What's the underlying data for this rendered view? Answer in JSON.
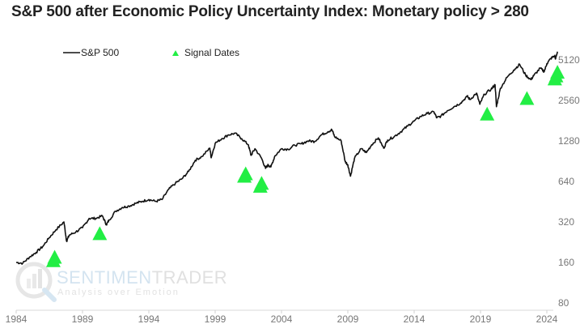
{
  "chart_data": {
    "type": "line",
    "title": "S&P 500 after Economic Policy Uncertainty Index: Monetary policy > 280",
    "xlabel": "",
    "ylabel": "",
    "y_scale": "log2",
    "xlim": [
      1984,
      2024.8
    ],
    "ylim": [
      80,
      6400
    ],
    "x_ticks": [
      "1984",
      "1989",
      "1994",
      "1999",
      "2004",
      "2009",
      "2014",
      "2019",
      "2024"
    ],
    "y_ticks": [
      "80",
      "160",
      "320",
      "640",
      "1280",
      "2560",
      "5120"
    ],
    "grid": false,
    "legend": {
      "placement": "top-left",
      "entries": [
        {
          "label": "S&P 500",
          "kind": "line",
          "color": "#111111"
        },
        {
          "label": "Signal Dates",
          "kind": "triangle",
          "color": "#22ee44"
        }
      ]
    },
    "watermark": {
      "brand_a": "SENTIMEN",
      "brand_b": "TRADER",
      "tagline": "Analysis over Emotion"
    },
    "series": [
      {
        "name": "S&P 500",
        "color": "#111111",
        "points": [
          [
            1984.0,
            160
          ],
          [
            1984.5,
            158
          ],
          [
            1985.0,
            175
          ],
          [
            1985.5,
            190
          ],
          [
            1986.0,
            210
          ],
          [
            1986.5,
            245
          ],
          [
            1987.0,
            280
          ],
          [
            1987.6,
            320
          ],
          [
            1987.8,
            230
          ],
          [
            1988.0,
            255
          ],
          [
            1988.5,
            270
          ],
          [
            1989.0,
            290
          ],
          [
            1989.5,
            340
          ],
          [
            1990.0,
            340
          ],
          [
            1990.5,
            355
          ],
          [
            1990.8,
            305
          ],
          [
            1991.0,
            330
          ],
          [
            1991.5,
            385
          ],
          [
            1992.0,
            410
          ],
          [
            1992.5,
            420
          ],
          [
            1993.0,
            440
          ],
          [
            1993.5,
            455
          ],
          [
            1994.0,
            470
          ],
          [
            1994.5,
            455
          ],
          [
            1995.0,
            470
          ],
          [
            1995.5,
            560
          ],
          [
            1996.0,
            620
          ],
          [
            1996.5,
            670
          ],
          [
            1997.0,
            760
          ],
          [
            1997.5,
            920
          ],
          [
            1998.0,
            980
          ],
          [
            1998.6,
            1130
          ],
          [
            1998.7,
            960
          ],
          [
            1999.0,
            1230
          ],
          [
            1999.5,
            1330
          ],
          [
            2000.0,
            1420
          ],
          [
            2000.5,
            1460
          ],
          [
            2001.0,
            1330
          ],
          [
            2001.5,
            1200
          ],
          [
            2001.7,
            1000
          ],
          [
            2002.0,
            1120
          ],
          [
            2002.5,
            950
          ],
          [
            2002.8,
            800
          ],
          [
            2003.0,
            850
          ],
          [
            2003.2,
            820
          ],
          [
            2003.5,
            990
          ],
          [
            2004.0,
            1120
          ],
          [
            2004.5,
            1110
          ],
          [
            2005.0,
            1190
          ],
          [
            2005.5,
            1220
          ],
          [
            2006.0,
            1280
          ],
          [
            2006.5,
            1270
          ],
          [
            2007.0,
            1420
          ],
          [
            2007.5,
            1500
          ],
          [
            2007.8,
            1550
          ],
          [
            2008.0,
            1380
          ],
          [
            2008.5,
            1280
          ],
          [
            2008.8,
            900
          ],
          [
            2009.0,
            850
          ],
          [
            2009.2,
            700
          ],
          [
            2009.5,
            950
          ],
          [
            2010.0,
            1120
          ],
          [
            2010.4,
            1050
          ],
          [
            2010.8,
            1200
          ],
          [
            2011.3,
            1350
          ],
          [
            2011.7,
            1130
          ],
          [
            2012.0,
            1300
          ],
          [
            2012.5,
            1380
          ],
          [
            2013.0,
            1500
          ],
          [
            2013.5,
            1650
          ],
          [
            2014.0,
            1800
          ],
          [
            2014.5,
            1950
          ],
          [
            2015.0,
            2050
          ],
          [
            2015.5,
            2100
          ],
          [
            2015.7,
            1900
          ],
          [
            2016.0,
            1950
          ],
          [
            2016.5,
            2150
          ],
          [
            2017.0,
            2300
          ],
          [
            2017.5,
            2450
          ],
          [
            2018.0,
            2750
          ],
          [
            2018.2,
            2600
          ],
          [
            2018.7,
            2900
          ],
          [
            2018.95,
            2400
          ],
          [
            2019.3,
            2850
          ],
          [
            2019.8,
            3100
          ],
          [
            2020.1,
            3350
          ],
          [
            2020.2,
            2300
          ],
          [
            2020.5,
            3150
          ],
          [
            2021.0,
            3800
          ],
          [
            2021.5,
            4300
          ],
          [
            2021.95,
            4750
          ],
          [
            2022.4,
            3950
          ],
          [
            2022.8,
            3650
          ],
          [
            2023.0,
            3900
          ],
          [
            2023.5,
            4450
          ],
          [
            2023.8,
            4200
          ],
          [
            2024.0,
            4800
          ],
          [
            2024.3,
            5250
          ],
          [
            2024.6,
            5500
          ],
          [
            2024.65,
            5200
          ],
          [
            2024.8,
            5900
          ]
        ]
      },
      {
        "name": "Signal Dates",
        "color": "#22ee44",
        "marker": "triangle",
        "points": [
          [
            1986.8,
            165
          ],
          [
            1986.9,
            175
          ],
          [
            1990.3,
            262
          ],
          [
            2001.2,
            700
          ],
          [
            2001.3,
            730
          ],
          [
            2002.4,
            590
          ],
          [
            2002.5,
            620
          ],
          [
            2019.5,
            2030
          ],
          [
            2022.5,
            2650
          ],
          [
            2024.6,
            3700
          ],
          [
            2024.7,
            3900
          ],
          [
            2024.8,
            4150
          ]
        ]
      }
    ]
  }
}
